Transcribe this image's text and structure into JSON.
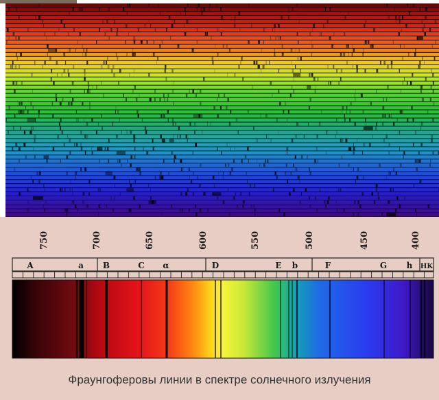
{
  "wavelength_ticks": [
    "750",
    "700",
    "650",
    "600",
    "550",
    "500",
    "450",
    "400"
  ],
  "line_labels": [
    "A",
    "a",
    "B",
    "C",
    "α",
    "D",
    "E",
    "b",
    "F",
    "G",
    "h",
    "HK"
  ],
  "caption": "Фраунгоферовы линии в спектре солнечного излучения",
  "colors": {
    "panel_background": "#e7cdc4",
    "caption_text": "#333333",
    "spectrum_background": "#000000"
  }
}
